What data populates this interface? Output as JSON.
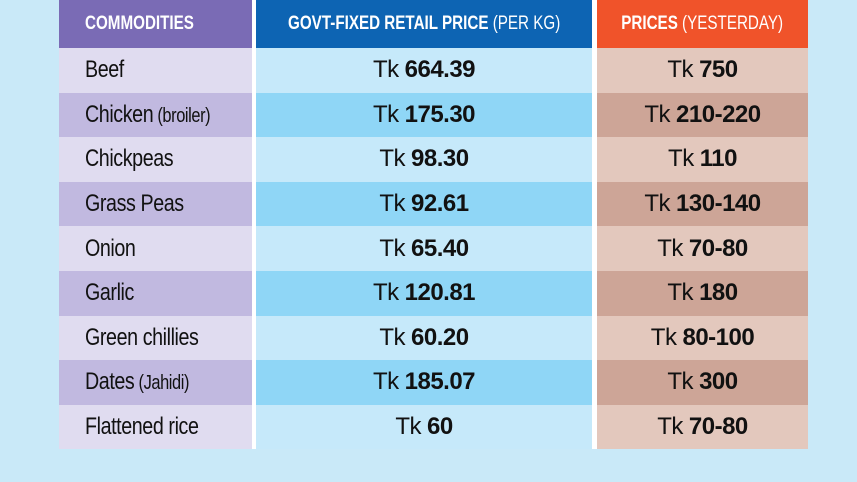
{
  "colors": {
    "background": "#c9e9f8",
    "header_commodities": "#7a6bb5",
    "header_govt": "#0d64b3",
    "header_yesterday": "#f0532a",
    "name_light": "#e0dcf0",
    "name_dark": "#c1b9e0",
    "govt_light": "#c6e9fa",
    "govt_dark": "#8fd6f6",
    "prev_light": "#e3c8bd",
    "prev_dark": "#cda597"
  },
  "header": {
    "commodities": "COMMODITIES",
    "govt_bold": "GOVT-FIXED RETAIL PRICE",
    "govt_light": " (PER KG)",
    "yesterday_bold": "PRICES",
    "yesterday_light": " (YESTERDAY)"
  },
  "currency": "Tk",
  "rows": [
    {
      "name": "Beef",
      "qualifier": "",
      "govt": "664.39",
      "yesterday": "750"
    },
    {
      "name": "Chicken",
      "qualifier": " (broiler)",
      "govt": "175.30",
      "yesterday": "210-220"
    },
    {
      "name": "Chickpeas",
      "qualifier": "",
      "govt": "98.30",
      "yesterday": "110"
    },
    {
      "name": "Grass Peas",
      "qualifier": "",
      "govt": "92.61",
      "yesterday": "130-140"
    },
    {
      "name": "Onion",
      "qualifier": "",
      "govt": "65.40",
      "yesterday": "70-80"
    },
    {
      "name": "Garlic",
      "qualifier": "",
      "govt": "120.81",
      "yesterday": "180"
    },
    {
      "name": "Green chillies",
      "qualifier": "",
      "govt": "60.20",
      "yesterday": "80-100"
    },
    {
      "name": "Dates",
      "qualifier": " (Jahidi)",
      "govt": "185.07",
      "yesterday": "300"
    },
    {
      "name": "Flattened rice",
      "qualifier": "",
      "govt": "60",
      "yesterday": "70-80"
    }
  ]
}
